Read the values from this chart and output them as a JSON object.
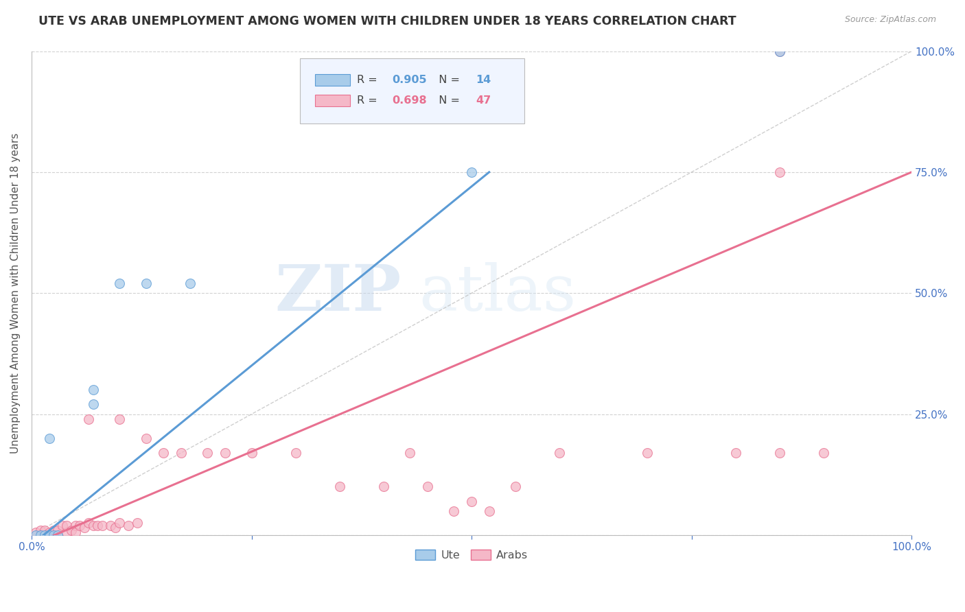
{
  "title": "UTE VS ARAB UNEMPLOYMENT AMONG WOMEN WITH CHILDREN UNDER 18 YEARS CORRELATION CHART",
  "source": "Source: ZipAtlas.com",
  "ylabel": "Unemployment Among Women with Children Under 18 years",
  "ute_R": 0.905,
  "ute_N": 14,
  "arab_R": 0.698,
  "arab_N": 47,
  "ute_color": "#A8CCEA",
  "arab_color": "#F5B8C8",
  "ute_line_color": "#5B9BD5",
  "arab_line_color": "#E87090",
  "identity_line_color": "#BBBBBB",
  "watermark_zip": "ZIP",
  "watermark_atlas": "atlas",
  "ute_scatter": [
    [
      0.005,
      0.0
    ],
    [
      0.01,
      0.0
    ],
    [
      0.015,
      0.0
    ],
    [
      0.02,
      0.0
    ],
    [
      0.025,
      0.0
    ],
    [
      0.03,
      0.0
    ],
    [
      0.02,
      0.2
    ],
    [
      0.07,
      0.27
    ],
    [
      0.1,
      0.52
    ],
    [
      0.13,
      0.52
    ],
    [
      0.18,
      0.52
    ],
    [
      0.07,
      0.3
    ],
    [
      0.5,
      0.75
    ],
    [
      0.85,
      1.0
    ]
  ],
  "arab_scatter": [
    [
      0.005,
      0.005
    ],
    [
      0.01,
      0.01
    ],
    [
      0.015,
      0.01
    ],
    [
      0.02,
      0.005
    ],
    [
      0.025,
      0.01
    ],
    [
      0.03,
      0.01
    ],
    [
      0.035,
      0.02
    ],
    [
      0.04,
      0.005
    ],
    [
      0.04,
      0.02
    ],
    [
      0.045,
      0.01
    ],
    [
      0.05,
      0.02
    ],
    [
      0.05,
      0.005
    ],
    [
      0.055,
      0.02
    ],
    [
      0.06,
      0.015
    ],
    [
      0.065,
      0.025
    ],
    [
      0.07,
      0.02
    ],
    [
      0.075,
      0.02
    ],
    [
      0.08,
      0.02
    ],
    [
      0.09,
      0.02
    ],
    [
      0.095,
      0.015
    ],
    [
      0.1,
      0.025
    ],
    [
      0.11,
      0.02
    ],
    [
      0.12,
      0.025
    ],
    [
      0.065,
      0.24
    ],
    [
      0.1,
      0.24
    ],
    [
      0.13,
      0.2
    ],
    [
      0.15,
      0.17
    ],
    [
      0.17,
      0.17
    ],
    [
      0.2,
      0.17
    ],
    [
      0.22,
      0.17
    ],
    [
      0.25,
      0.17
    ],
    [
      0.3,
      0.17
    ],
    [
      0.35,
      0.1
    ],
    [
      0.4,
      0.1
    ],
    [
      0.43,
      0.17
    ],
    [
      0.45,
      0.1
    ],
    [
      0.48,
      0.05
    ],
    [
      0.5,
      0.07
    ],
    [
      0.52,
      0.05
    ],
    [
      0.55,
      0.1
    ],
    [
      0.6,
      0.17
    ],
    [
      0.7,
      0.17
    ],
    [
      0.8,
      0.17
    ],
    [
      0.85,
      0.17
    ],
    [
      0.9,
      0.17
    ],
    [
      0.85,
      1.0
    ],
    [
      0.85,
      0.75
    ]
  ],
  "ute_line": {
    "x0": 0.0,
    "y0": -0.02,
    "x1": 0.52,
    "y1": 0.75
  },
  "arab_line": {
    "x0": 0.0,
    "y0": -0.02,
    "x1": 1.0,
    "y1": 0.75
  },
  "xlim": [
    0.0,
    1.0
  ],
  "ylim": [
    0.0,
    1.0
  ],
  "xticks": [
    0.0,
    0.25,
    0.5,
    0.75,
    1.0
  ],
  "xtick_labels": [
    "0.0%",
    "",
    "",
    "",
    "100.0%"
  ],
  "yticks_right": [
    0.0,
    0.25,
    0.5,
    0.75,
    1.0
  ],
  "ytick_labels_right": [
    "",
    "25.0%",
    "50.0%",
    "75.0%",
    "100.0%"
  ],
  "grid_color": "#CCCCCC",
  "bg_color": "#FFFFFF",
  "title_color": "#333333",
  "axis_label_color": "#555555",
  "tick_color": "#4472C4"
}
